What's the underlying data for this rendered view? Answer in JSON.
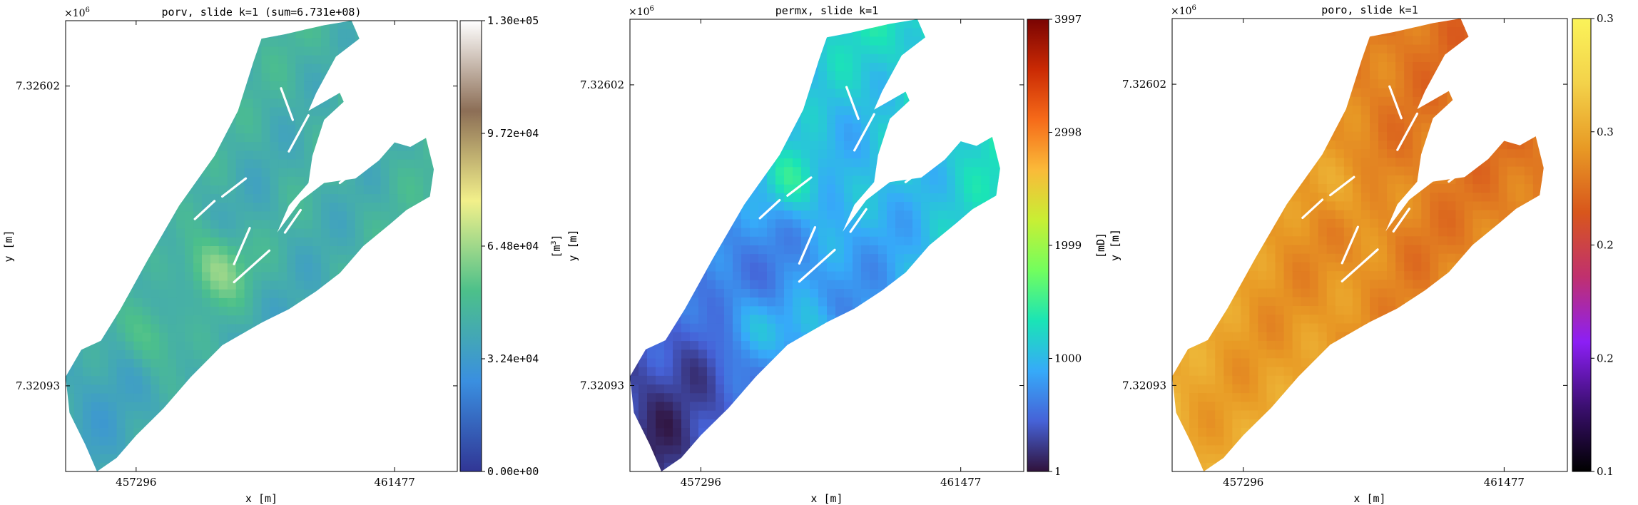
{
  "chart_data": [
    {
      "type": "heatmap",
      "title": "porv, slide k=1 (sum=6.731e+08)",
      "xlabel": "x [m]",
      "ylabel": "y [m]",
      "x_ticks": [
        "457296",
        "461477"
      ],
      "y_ticks": [
        "7.32602",
        "7.32093"
      ],
      "y_offset": "×10^6",
      "colorbar": {
        "label": "[m^3]",
        "colormap": "terrain-like",
        "stops": [
          "#313695",
          "#3a8fe0",
          "#4cc08a",
          "#f2f08a",
          "#8c6e56",
          "#ffffff"
        ],
        "ticks": [
          "1.30e+05",
          "9.72e+04",
          "6.48e+04",
          "3.24e+04",
          "0.00e+00"
        ],
        "range": [
          0,
          130000
        ]
      },
      "field": {
        "base": 0.32,
        "northeast": 0.04,
        "highlights": [
          [
            0.38,
            0.55,
            0.5
          ],
          [
            0.22,
            0.7,
            0.44
          ]
        ]
      }
    },
    {
      "type": "heatmap",
      "title": "permx, slide k=1",
      "xlabel": "x [m]",
      "ylabel": "y [m]",
      "x_ticks": [
        "457296",
        "461477"
      ],
      "y_ticks": [
        "7.32602",
        "7.32093"
      ],
      "y_offset": "×10^6",
      "colorbar": {
        "label": "[mD]",
        "colormap": "turbo",
        "stops": [
          "#30123b",
          "#4662d7",
          "#36aaf9",
          "#1ae4b6",
          "#72fe5e",
          "#c8ef34",
          "#faba39",
          "#f66b19",
          "#ca2a04",
          "#7a0403"
        ],
        "ticks": [
          "3997",
          "2998",
          "1999",
          "1000",
          "1"
        ],
        "range": [
          1,
          3997
        ]
      },
      "field": {
        "base": 0.2,
        "northeast": 0.18,
        "highlights": [
          [
            0.42,
            0.36,
            0.34
          ],
          [
            0.3,
            0.68,
            0.32
          ],
          [
            0.47,
            0.7,
            0.3
          ]
        ]
      }
    },
    {
      "type": "heatmap",
      "title": "poro, slide k=1",
      "xlabel": "x [m]",
      "ylabel": "y [m]",
      "x_ticks": [
        "457296",
        "461477"
      ],
      "y_ticks": [
        "7.32602",
        "7.32093"
      ],
      "y_offset": "×10^6",
      "colorbar": {
        "label": "[-]",
        "colormap": "gnuplot-like",
        "stops": [
          "#000000",
          "#3b0f70",
          "#8c1ff5",
          "#c0306f",
          "#d8561c",
          "#e89a25",
          "#f3d24a",
          "#fbf35a"
        ],
        "ticks": [
          "0.3",
          "0.3",
          "0.2",
          "0.2",
          "0.1"
        ],
        "range": [
          0.1,
          0.3
        ]
      },
      "field": {
        "base": 0.68,
        "northeast": -0.08,
        "highlights": [
          [
            0.44,
            0.37,
            0.76
          ],
          [
            0.6,
            0.5,
            0.66
          ]
        ]
      }
    }
  ]
}
